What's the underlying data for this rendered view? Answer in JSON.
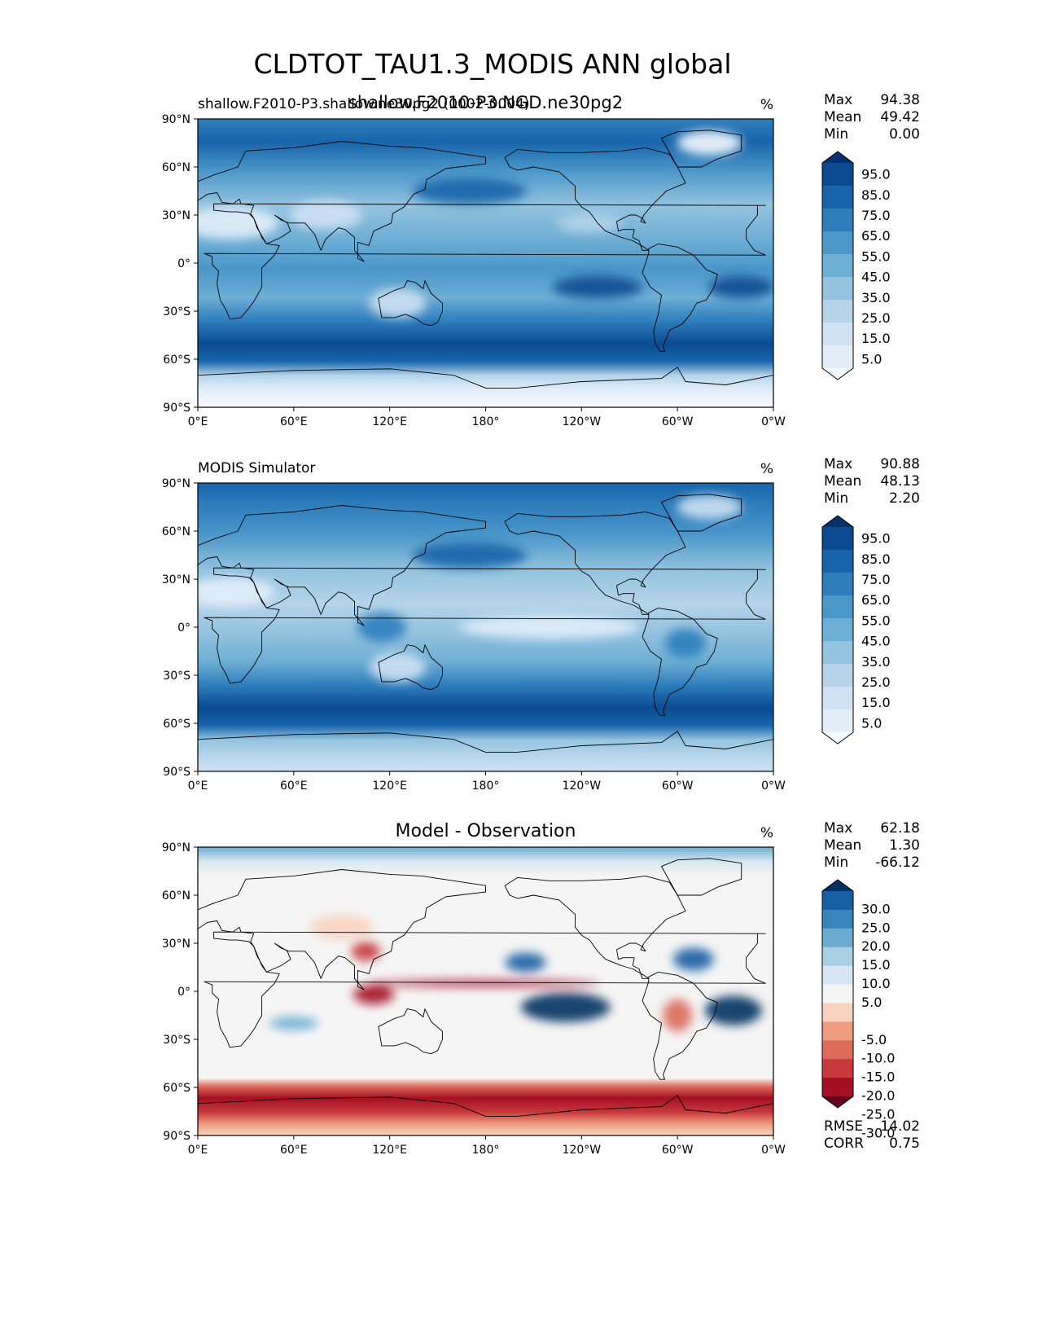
{
  "figure": {
    "title": "CLDTOT_TAU1.3_MODIS ANN global"
  },
  "chart_data": [
    {
      "type": "heatmap",
      "panel": "test",
      "left_title": "shallow.F2010-P3.shallow.ne30pg2 (0002-0004)",
      "center_title": "shallow.F2010-P3.NGD.ne30pg2",
      "units": "%",
      "stats": [
        {
          "label": "Max",
          "value": "94.38"
        },
        {
          "label": "Mean",
          "value": "49.42"
        },
        {
          "label": "Min",
          "value": "0.00"
        }
      ],
      "colorbar": {
        "palette": "blues",
        "colors": [
          "#f7fbff",
          "#e3eef9",
          "#cfe1f2",
          "#b5d4e9",
          "#93c3df",
          "#6daed5",
          "#4b97c9",
          "#2f7ebc",
          "#1864aa",
          "#0a4a90",
          "#08306b"
        ],
        "labels": [
          "95.0",
          "85.0",
          "75.0",
          "65.0",
          "55.0",
          "45.0",
          "35.0",
          "25.0",
          "15.0",
          "5.0"
        ],
        "extend": "both"
      },
      "xlabels": [
        "0°E",
        "60°E",
        "120°E",
        "180°",
        "120°W",
        "60°W",
        "0°W"
      ],
      "ylabels": [
        "90°N",
        "60°N",
        "30°N",
        "0°",
        "30°S",
        "60°S",
        "90°S"
      ],
      "xlim": [
        0,
        360
      ],
      "ylim": [
        -90,
        90
      ]
    },
    {
      "type": "heatmap",
      "panel": "reference",
      "left_title": "MODIS Simulator",
      "center_title": "",
      "units": "%",
      "stats": [
        {
          "label": "Max",
          "value": "90.88"
        },
        {
          "label": "Mean",
          "value": "48.13"
        },
        {
          "label": "Min",
          "value": "2.20"
        }
      ],
      "colorbar": {
        "palette": "blues",
        "colors": [
          "#f7fbff",
          "#e3eef9",
          "#cfe1f2",
          "#b5d4e9",
          "#93c3df",
          "#6daed5",
          "#4b97c9",
          "#2f7ebc",
          "#1864aa",
          "#0a4a90",
          "#08306b"
        ],
        "labels": [
          "95.0",
          "85.0",
          "75.0",
          "65.0",
          "55.0",
          "45.0",
          "35.0",
          "25.0",
          "15.0",
          "5.0"
        ],
        "extend": "both"
      },
      "xlabels": [
        "0°E",
        "60°E",
        "120°E",
        "180°",
        "120°W",
        "60°W",
        "0°W"
      ],
      "ylabels": [
        "90°N",
        "60°N",
        "30°N",
        "0°",
        "30°S",
        "60°S",
        "90°S"
      ],
      "xlim": [
        0,
        360
      ],
      "ylim": [
        -90,
        90
      ]
    },
    {
      "type": "heatmap",
      "panel": "difference",
      "left_title": "",
      "center_title": "Model - Observation",
      "units": "%",
      "stats": [
        {
          "label": "Max",
          "value": "62.18"
        },
        {
          "label": "Mean",
          "value": "1.30"
        },
        {
          "label": "Min",
          "value": "-66.12"
        }
      ],
      "bottom_stats": [
        {
          "label": "RMSE",
          "value": "14.02"
        },
        {
          "label": "CORR",
          "value": "0.75"
        }
      ],
      "colorbar": {
        "palette": "rdbu",
        "colors": [
          "#67001f",
          "#a50f23",
          "#c7393b",
          "#dc6c59",
          "#ee9c7f",
          "#f8d3c0",
          "#f5f5f5",
          "#d6e7f1",
          "#a9cfe5",
          "#6aacd0",
          "#3785bb",
          "#185ea2",
          "#053061"
        ],
        "labels": [
          "30.0",
          "25.0",
          "20.0",
          "15.0",
          "10.0",
          "5.0",
          "-5.0",
          "-10.0",
          "-15.0",
          "-20.0",
          "-25.0",
          "-30.0"
        ],
        "extend": "both"
      },
      "xlabels": [
        "0°E",
        "60°E",
        "120°E",
        "180°",
        "120°W",
        "60°W",
        "0°W"
      ],
      "ylabels": [
        "90°N",
        "60°N",
        "30°N",
        "0°",
        "30°S",
        "60°S",
        "90°S"
      ],
      "xlim": [
        0,
        360
      ],
      "ylim": [
        -90,
        90
      ]
    }
  ]
}
